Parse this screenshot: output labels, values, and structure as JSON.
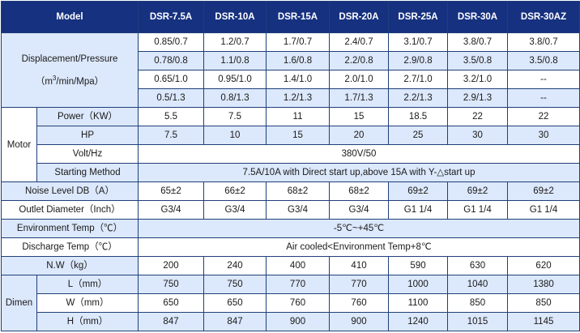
{
  "headers": {
    "model": "Model",
    "cols": [
      "DSR-7.5A",
      "DSR-10A",
      "DSR-15A",
      "DSR-20A",
      "DSR-25A",
      "DSR-30A",
      "DSR-30AZ"
    ]
  },
  "displacement": {
    "label_line1": "Displacement/Pressure",
    "label_pre": "（m",
    "label_sup": "3",
    "label_post": "/min/Mpa）",
    "rows": [
      [
        "0.85/0.7",
        "1.2/0.7",
        "1.7/0.7",
        "2.4/0.7",
        "3.1/0.7",
        "3.8/0.7",
        "3.8/0.7"
      ],
      [
        "0.78/0.8",
        "1.1/0.8",
        "1.6/0.8",
        "2.2/0.8",
        "2.9/0.8",
        "3.5/0.8",
        "3.5/0.8"
      ],
      [
        "0.65/1.0",
        "0.95/1.0",
        "1.4/1.0",
        "2.0/1.0",
        "2.7/1.0",
        "3.2/1.0",
        "--"
      ],
      [
        "0.5/1.3",
        "0.8/1.3",
        "1.2/1.3",
        "1.7/1.3",
        "2.2/1.3",
        "2.9/1.3",
        "--"
      ]
    ]
  },
  "motor": {
    "label": "Motor",
    "power": {
      "label": "Power（KW）",
      "values": [
        "5.5",
        "7.5",
        "11",
        "15",
        "18.5",
        "22",
        "22"
      ]
    },
    "hp": {
      "label": "HP",
      "values": [
        "7.5",
        "10",
        "15",
        "20",
        "25",
        "30",
        "30"
      ]
    },
    "volt": {
      "label": "Volt/Hz",
      "value": "380V/50"
    },
    "starting": {
      "label": "Starting Method",
      "value": "7.5A/10A with Direct start up,above 15A with Y-△start up"
    }
  },
  "noise": {
    "label": "Noise Level DB（A）",
    "values": [
      "65±2",
      "66±2",
      "68±2",
      "68±2",
      "69±2",
      "69±2",
      "69±2"
    ]
  },
  "outlet": {
    "label": "Outlet Diameter（Inch）",
    "values": [
      "G3/4",
      "G3/4",
      "G3/4",
      "G3/4",
      "G1 1/4",
      "G1 1/4",
      "G1 1/4"
    ]
  },
  "env_temp": {
    "label": "Environment Temp（℃）",
    "value": "-5℃~+45℃"
  },
  "discharge_temp": {
    "label": "Discharge Temp（℃）",
    "value": "Air cooled<Environment Temp+8℃"
  },
  "nw": {
    "label": "N.W（kg）",
    "values": [
      "200",
      "240",
      "400",
      "410",
      "590",
      "630",
      "620"
    ]
  },
  "dimen": {
    "label": "Dimen",
    "l": {
      "label": "L（mm）",
      "values": [
        "750",
        "750",
        "770",
        "770",
        "1000",
        "1040",
        "1380"
      ]
    },
    "w": {
      "label": "W（mm）",
      "values": [
        "650",
        "650",
        "760",
        "760",
        "1100",
        "850",
        "850"
      ]
    },
    "h": {
      "label": "H（mm）",
      "values": [
        "847",
        "847",
        "900",
        "900",
        "1240",
        "1015",
        "1145"
      ]
    }
  }
}
